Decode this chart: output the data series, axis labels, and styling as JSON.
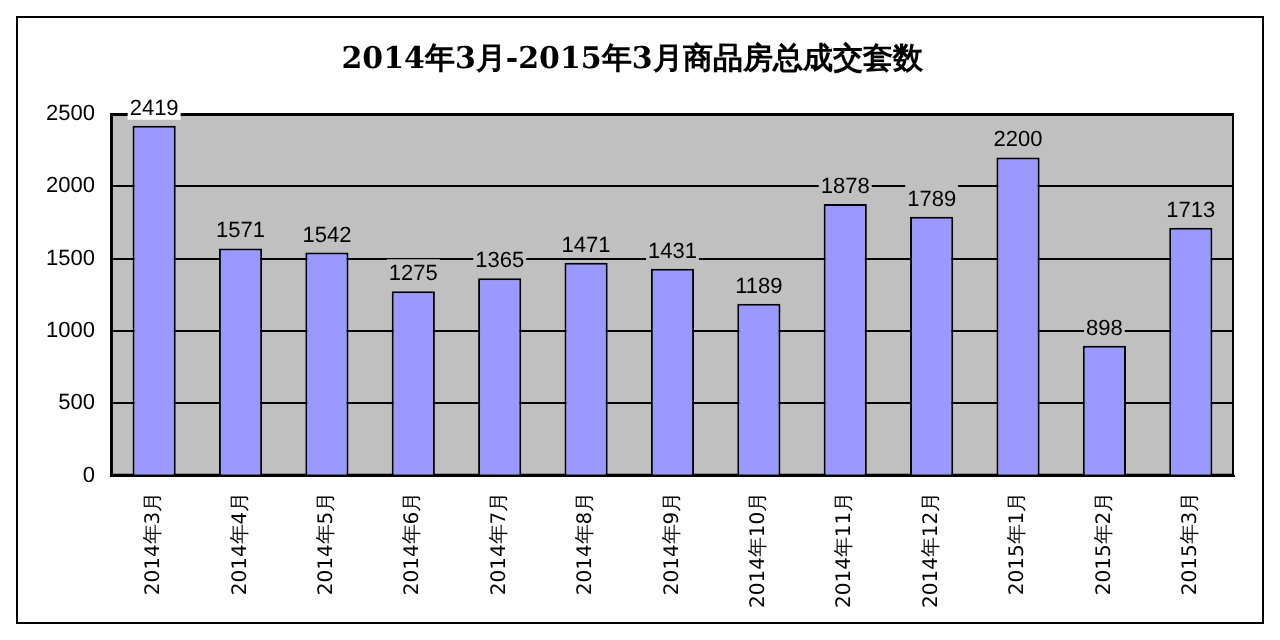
{
  "chart_data": {
    "type": "bar",
    "title": "2014年3月-2015年3月商品房总成交套数",
    "categories": [
      "2014年3月",
      "2014年4月",
      "2014年5月",
      "2014年6月",
      "2014年7月",
      "2014年8月",
      "2014年9月",
      "2014年10月",
      "2014年11月",
      "2014年12月",
      "2015年1月",
      "2015年2月",
      "2015年3月"
    ],
    "values": [
      2419,
      1571,
      1542,
      1275,
      1365,
      1471,
      1431,
      1189,
      1878,
      1789,
      2200,
      898,
      1713
    ],
    "color": "#9999ff",
    "ylim": [
      0,
      2500
    ],
    "yticks": [
      0,
      500,
      1000,
      1500,
      2000,
      2500
    ],
    "grid": "y",
    "data_labels": true
  }
}
